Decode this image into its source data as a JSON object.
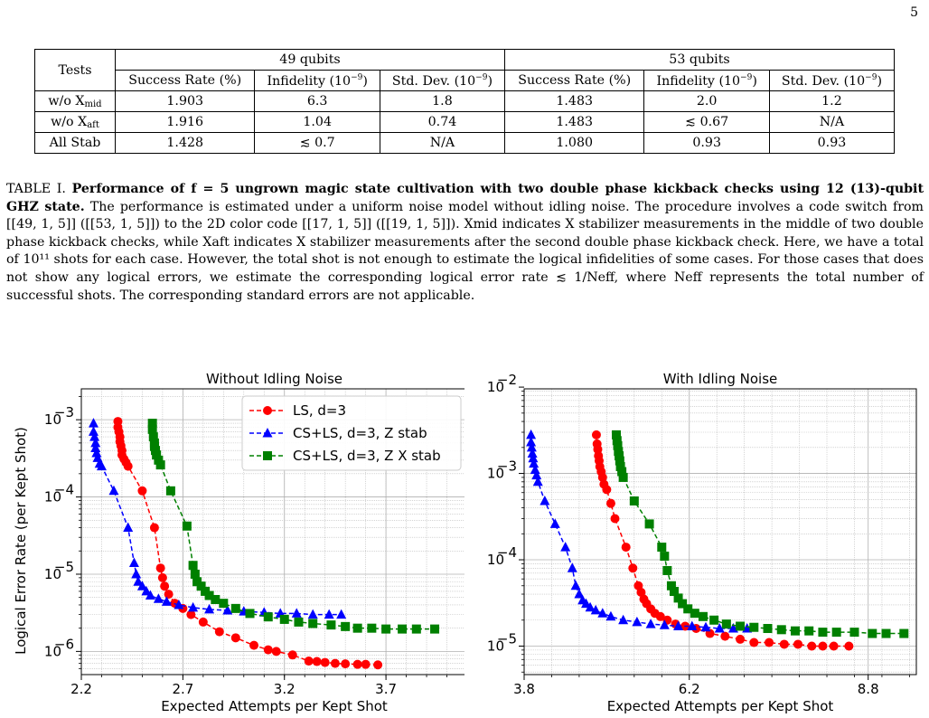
{
  "page_number": "5",
  "table": {
    "tests_header": "Tests",
    "groups": [
      "49 qubits",
      "53 qubits"
    ],
    "subheaders": [
      "Success Rate (%)",
      "Infidelity (10",
      "Std. Dev. (10"
    ],
    "exp": "−9",
    "rows": [
      {
        "label_main": "w/o X",
        "label_sub": "mid",
        "cells": [
          "1.903",
          "6.3",
          "1.8",
          "1.483",
          "2.0",
          "1.2"
        ]
      },
      {
        "label_main": "w/o X",
        "label_sub": "aft",
        "cells": [
          "1.916",
          "1.04",
          "0.74",
          "1.483",
          "≲ 0.67",
          "N/A"
        ]
      },
      {
        "label_main": "All Stab",
        "label_sub": "",
        "cells": [
          "1.428",
          "≲ 0.7",
          "N/A",
          "1.080",
          "0.93",
          "0.93"
        ]
      }
    ]
  },
  "caption": {
    "label": "TABLE I.",
    "bold": "Performance of f = 5 ungrown magic state cultivation with two double phase kickback checks using 12 (13)-qubit GHZ state.",
    "text": "The performance is estimated under a uniform noise model without idling noise. The procedure involves a code switch from [[49, 1, 5]] ([[53, 1, 5]]) to the 2D color code [[17, 1, 5]] ([[19, 1, 5]]). Xmid indicates X stabilizer measurements in the middle of two double phase kickback checks, while Xaft indicates X stabilizer measurements after the second double phase kickback check. Here, we have a total of 10¹¹ shots for each case. However, the total shot is not enough to estimate the logical infidelities of some cases. For those cases that does not show any logical errors, we estimate the corresponding logical error rate ≲ 1/Neff, where Neff represents the total number of successful shots. The corresponding standard errors are not applicable."
  },
  "colors": {
    "ls": "#ff0000",
    "cs_z": "#0000ff",
    "cs_zx": "#008000"
  },
  "chart_data": [
    {
      "type": "line",
      "title": "Without Idling Noise",
      "xlabel": "Expected Attempts per Kept Shot",
      "ylabel": "Logical Error Rate (per Kept Shot)",
      "xlim": [
        2.2,
        4.1
      ],
      "ylim_log10": [
        -6.3,
        -2.6
      ],
      "xscale": "linear",
      "yscale": "log",
      "xticks": [
        2.2,
        2.7,
        3.2,
        3.7
      ],
      "xtick_labels": [
        "2.2",
        "2.7",
        "3.2",
        "3.7"
      ],
      "yticks_log10": [
        -6,
        -5,
        -4,
        -3
      ],
      "ytick_base": "10",
      "ytick_exps": [
        "−6",
        "−5",
        "−4",
        "−3"
      ],
      "grid": true,
      "legend": "top-right",
      "series": [
        {
          "name": "LS, d=3",
          "color": "#ff0000",
          "marker": "circle",
          "x": [
            2.38,
            2.38,
            2.385,
            2.39,
            2.39,
            2.395,
            2.4,
            2.4,
            2.41,
            2.42,
            2.43,
            2.5,
            2.56,
            2.59,
            2.6,
            2.61,
            2.63,
            2.66,
            2.7,
            2.74,
            2.8,
            2.88,
            2.96,
            3.05,
            3.12,
            3.16,
            3.24,
            3.32,
            3.36,
            3.4,
            3.45,
            3.5,
            3.56,
            3.6,
            3.66
          ],
          "y": [
            0.00095,
            0.0008,
            0.0007,
            0.0006,
            0.00052,
            0.00046,
            0.0004,
            0.00035,
            0.00031,
            0.00028,
            0.00025,
            0.00012,
            4e-05,
            1.2e-05,
            9e-06,
            7e-06,
            5.5e-06,
            4.2e-06,
            3.6e-06,
            3e-06,
            2.4e-06,
            1.8e-06,
            1.5e-06,
            1.2e-06,
            1.05e-06,
            1e-06,
            9e-07,
            7.5e-07,
            7.4e-07,
            7.2e-07,
            7e-07,
            6.9e-07,
            6.8e-07,
            6.8e-07,
            6.7e-07
          ]
        },
        {
          "name": "CS+LS, d=3, Z stab",
          "color": "#0000ff",
          "marker": "triangle",
          "x": [
            2.26,
            2.26,
            2.265,
            2.27,
            2.27,
            2.275,
            2.28,
            2.29,
            2.3,
            2.36,
            2.43,
            2.46,
            2.47,
            2.48,
            2.5,
            2.52,
            2.54,
            2.58,
            2.62,
            2.68,
            2.75,
            2.83,
            2.92,
            3.0,
            3.1,
            3.18,
            3.26,
            3.34,
            3.42,
            3.48
          ],
          "y": [
            0.0009,
            0.0007,
            0.0006,
            0.0005,
            0.00043,
            0.00037,
            0.00032,
            0.00027,
            0.00025,
            0.00012,
            4e-05,
            1.4e-05,
            1e-05,
            8e-06,
            7e-06,
            6e-06,
            5.3e-06,
            4.8e-06,
            4.4e-06,
            4e-06,
            3.7e-06,
            3.5e-06,
            3.4e-06,
            3.3e-06,
            3.2e-06,
            3.1e-06,
            3.1e-06,
            3e-06,
            3e-06,
            3e-06
          ]
        },
        {
          "name": "CS+LS, d=3, Z X stab",
          "color": "#008000",
          "marker": "square",
          "x": [
            2.55,
            2.55,
            2.555,
            2.56,
            2.56,
            2.565,
            2.57,
            2.58,
            2.59,
            2.64,
            2.72,
            2.75,
            2.76,
            2.77,
            2.79,
            2.81,
            2.83,
            2.86,
            2.9,
            2.96,
            3.03,
            3.12,
            3.2,
            3.27,
            3.34,
            3.43,
            3.5,
            3.56,
            3.63,
            3.7,
            3.78,
            3.85,
            3.94
          ],
          "y": [
            0.0009,
            0.00075,
            0.0006,
            0.0005,
            0.00045,
            0.0004,
            0.00035,
            0.0003,
            0.00026,
            0.00012,
            4.2e-05,
            1.3e-05,
            1e-05,
            8e-06,
            7e-06,
            6e-06,
            5.3e-06,
            4.7e-06,
            4.2e-06,
            3.6e-06,
            3.1e-06,
            2.8e-06,
            2.6e-06,
            2.4e-06,
            2.3e-06,
            2.2e-06,
            2.1e-06,
            2e-06,
            2e-06,
            1.95e-06,
            1.95e-06,
            1.95e-06,
            1.95e-06
          ]
        }
      ]
    },
    {
      "type": "line",
      "title": "With Idling Noise",
      "xlabel": "Expected Attempts per Kept Shot",
      "ylabel": "",
      "xlim": [
        3.8,
        9.5
      ],
      "ylim_log10": [
        -5.33,
        -2.02
      ],
      "xscale": "linear",
      "yscale": "log",
      "xticks": [
        3.8,
        6.2,
        8.8
      ],
      "xtick_labels": [
        "3.8",
        "6.2",
        "8.8"
      ],
      "yticks_log10": [
        -5,
        -4,
        -3,
        -2
      ],
      "ytick_base": "10",
      "ytick_exps": [
        "−5",
        "−4",
        "−3",
        "−2"
      ],
      "grid": true,
      "legend": "none",
      "series": [
        {
          "name": "LS, d=3",
          "color": "#ff0000",
          "marker": "circle",
          "x": [
            4.85,
            4.86,
            4.87,
            4.88,
            4.89,
            4.9,
            4.92,
            4.94,
            4.96,
            5.0,
            5.06,
            5.12,
            5.28,
            5.38,
            5.46,
            5.5,
            5.54,
            5.58,
            5.64,
            5.7,
            5.78,
            5.88,
            6.0,
            6.14,
            6.3,
            6.5,
            6.72,
            6.94,
            7.14,
            7.36,
            7.58,
            7.78,
            7.98,
            8.14,
            8.3,
            8.52
          ],
          "y": [
            0.0028,
            0.0022,
            0.0019,
            0.0016,
            0.0014,
            0.0012,
            0.00105,
            0.0009,
            0.00075,
            0.00065,
            0.00045,
            0.0003,
            0.00014,
            8e-05,
            5e-05,
            4.2e-05,
            3.5e-05,
            3.1e-05,
            2.7e-05,
            2.4e-05,
            2.2e-05,
            2e-05,
            1.8e-05,
            1.7e-05,
            1.6e-05,
            1.4e-05,
            1.3e-05,
            1.2e-05,
            1.1e-05,
            1.1e-05,
            1.05e-05,
            1.05e-05,
            1e-05,
            1e-05,
            1e-05,
            1e-05
          ]
        },
        {
          "name": "CS+LS, d=3, Z stab",
          "color": "#0000ff",
          "marker": "triangle",
          "x": [
            3.9,
            3.9,
            3.91,
            3.92,
            3.93,
            3.94,
            3.96,
            3.98,
            4.0,
            4.1,
            4.25,
            4.4,
            4.5,
            4.55,
            4.6,
            4.65,
            4.7,
            4.76,
            4.84,
            4.94,
            5.06,
            5.24,
            5.44,
            5.64,
            5.84,
            6.04,
            6.24,
            6.44,
            6.64,
            6.84,
            7.04
          ],
          "y": [
            0.0028,
            0.0023,
            0.002,
            0.0017,
            0.0015,
            0.0013,
            0.0011,
            0.00095,
            0.0008,
            0.00048,
            0.00026,
            0.00014,
            8e-05,
            5e-05,
            4e-05,
            3.4e-05,
            3.1e-05,
            2.8e-05,
            2.6e-05,
            2.4e-05,
            2.2e-05,
            2e-05,
            1.9e-05,
            1.8e-05,
            1.75e-05,
            1.7e-05,
            1.7e-05,
            1.65e-05,
            1.6e-05,
            1.6e-05,
            1.6e-05
          ]
        },
        {
          "name": "CS+LS, d=3, Z X stab",
          "color": "#008000",
          "marker": "square",
          "x": [
            5.14,
            5.15,
            5.16,
            5.17,
            5.18,
            5.19,
            5.2,
            5.22,
            5.24,
            5.4,
            5.62,
            5.8,
            5.84,
            5.88,
            5.94,
            5.98,
            6.04,
            6.1,
            6.18,
            6.28,
            6.4,
            6.56,
            6.74,
            6.94,
            7.14,
            7.34,
            7.54,
            7.74,
            7.94,
            8.14,
            8.34,
            8.6,
            8.86,
            9.06,
            9.32
          ],
          "y": [
            0.0028,
            0.0024,
            0.0021,
            0.0018,
            0.0016,
            0.0014,
            0.0012,
            0.00105,
            0.0009,
            0.00048,
            0.00026,
            0.00014,
            0.00011,
            7.5e-05,
            5e-05,
            4.3e-05,
            3.6e-05,
            3.1e-05,
            2.7e-05,
            2.4e-05,
            2.2e-05,
            2e-05,
            1.8e-05,
            1.7e-05,
            1.65e-05,
            1.6e-05,
            1.55e-05,
            1.5e-05,
            1.5e-05,
            1.45e-05,
            1.45e-05,
            1.45e-05,
            1.4e-05,
            1.4e-05,
            1.4e-05
          ]
        }
      ]
    }
  ]
}
